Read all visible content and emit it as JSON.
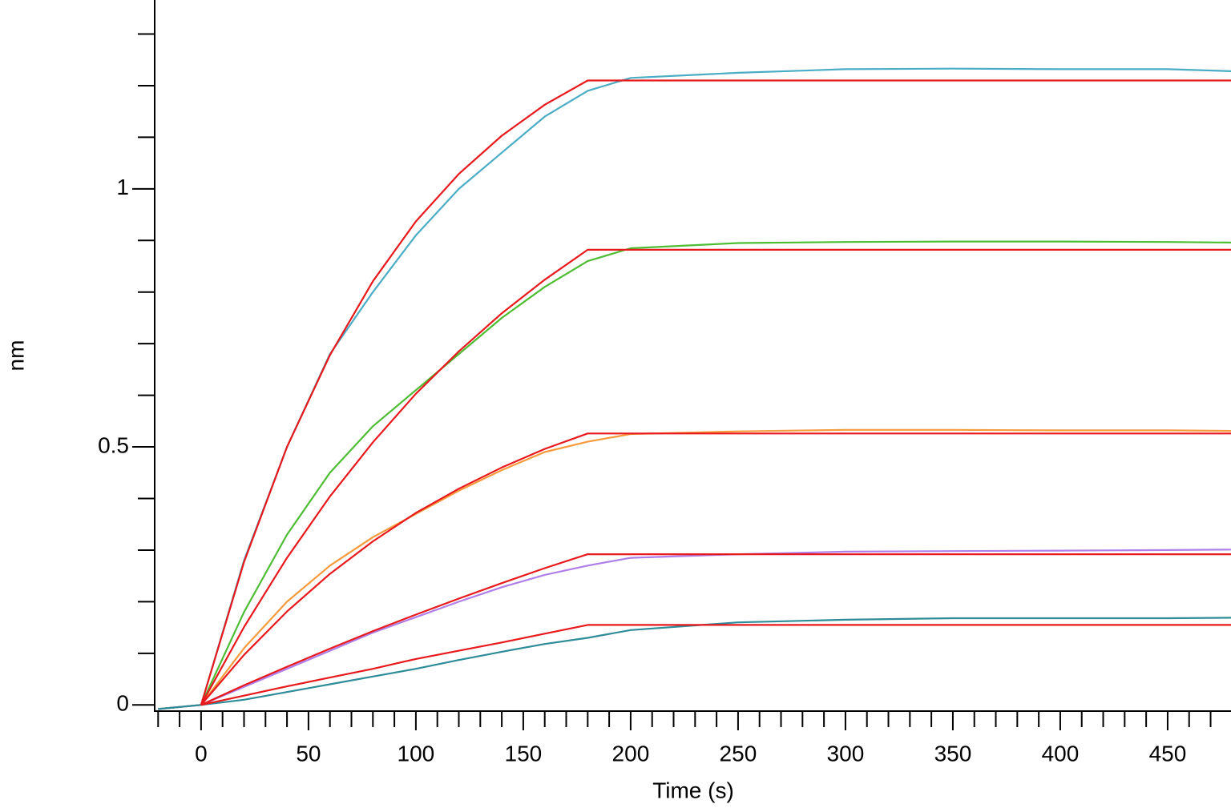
{
  "chart_data": {
    "type": "line",
    "xlabel": "Time (s)",
    "ylabel": "nm",
    "x": [
      -20,
      0,
      20,
      40,
      60,
      80,
      100,
      120,
      140,
      160,
      180,
      200,
      250,
      300,
      350,
      400,
      450,
      480
    ],
    "series": [
      {
        "color": "#4bacc6",
        "values": [
          -0.008,
          0,
          0.28,
          0.5,
          0.68,
          0.8,
          0.91,
          1.0,
          1.07,
          1.14,
          1.19,
          1.215,
          1.225,
          1.232,
          1.233,
          1.232,
          1.232,
          1.228
        ]
      },
      {
        "color": "#4dbd33",
        "values": [
          -0.008,
          0,
          0.18,
          0.33,
          0.45,
          0.54,
          0.61,
          0.68,
          0.75,
          0.81,
          0.86,
          0.885,
          0.895,
          0.897,
          0.898,
          0.898,
          0.897,
          0.896
        ]
      },
      {
        "color": "#f79a3b",
        "values": [
          -0.008,
          0,
          0.11,
          0.2,
          0.27,
          0.325,
          0.37,
          0.415,
          0.455,
          0.49,
          0.51,
          0.525,
          0.53,
          0.533,
          0.533,
          0.532,
          0.532,
          0.531
        ]
      },
      {
        "color": "#b07ee8",
        "values": [
          -0.008,
          0,
          0.035,
          0.07,
          0.105,
          0.14,
          0.17,
          0.2,
          0.228,
          0.252,
          0.27,
          0.285,
          0.292,
          0.297,
          0.298,
          0.299,
          0.3,
          0.301
        ]
      },
      {
        "color": "#2e8c99",
        "values": [
          -0.008,
          0,
          0.01,
          0.025,
          0.04,
          0.055,
          0.07,
          0.087,
          0.103,
          0.118,
          0.13,
          0.145,
          0.16,
          0.165,
          0.168,
          0.168,
          0.168,
          0.169
        ]
      },
      {
        "color": "#e8191c",
        "values": [
          null,
          0,
          0.277,
          0.5,
          0.678,
          0.821,
          0.937,
          1.029,
          1.103,
          1.163,
          1.21,
          1.21,
          1.21,
          1.21,
          1.21,
          1.21,
          1.21,
          1.21
        ]
      },
      {
        "color": "#e8191c",
        "values": [
          null,
          0,
          0.151,
          0.285,
          0.404,
          0.509,
          0.603,
          0.685,
          0.759,
          0.824,
          0.882,
          0.882,
          0.882,
          0.882,
          0.882,
          0.882,
          0.882,
          0.882
        ]
      },
      {
        "color": "#e8191c",
        "values": [
          null,
          0,
          0.097,
          0.181,
          0.254,
          0.317,
          0.372,
          0.419,
          0.46,
          0.496,
          0.526,
          0.526,
          0.526,
          0.526,
          0.526,
          0.526,
          0.526,
          0.526
        ]
      },
      {
        "color": "#e8191c",
        "values": [
          null,
          0,
          0.038,
          0.074,
          0.109,
          0.143,
          0.175,
          0.206,
          0.236,
          0.265,
          0.292,
          0.292,
          0.292,
          0.292,
          0.292,
          0.292,
          0.292,
          0.292
        ]
      },
      {
        "color": "#e8191c",
        "values": [
          null,
          0,
          0.018,
          0.036,
          0.053,
          0.07,
          0.089,
          0.105,
          0.121,
          0.138,
          0.155,
          0.155,
          0.155,
          0.155,
          0.155,
          0.155,
          0.155,
          0.155
        ]
      }
    ],
    "xlim": [
      -21.6,
      479.5
    ],
    "ylim": [
      -0.012,
      1.366
    ],
    "xticks": [
      0,
      50,
      100,
      150,
      200,
      250,
      300,
      350,
      400,
      450
    ],
    "xticks_minor": [
      -20,
      -10,
      10,
      20,
      30,
      40,
      60,
      70,
      80,
      90,
      110,
      120,
      130,
      140,
      160,
      170,
      180,
      190,
      210,
      220,
      230,
      240,
      260,
      270,
      280,
      290,
      310,
      320,
      330,
      340,
      360,
      370,
      380,
      390,
      410,
      420,
      430,
      440,
      460,
      470
    ],
    "yticks": [
      0,
      0.5,
      1
    ],
    "yticks_minor": [
      0.1,
      0.2,
      0.3,
      0.4,
      0.6,
      0.7,
      0.8,
      0.9,
      1.1,
      1.2,
      1.3
    ],
    "grid": false
  }
}
